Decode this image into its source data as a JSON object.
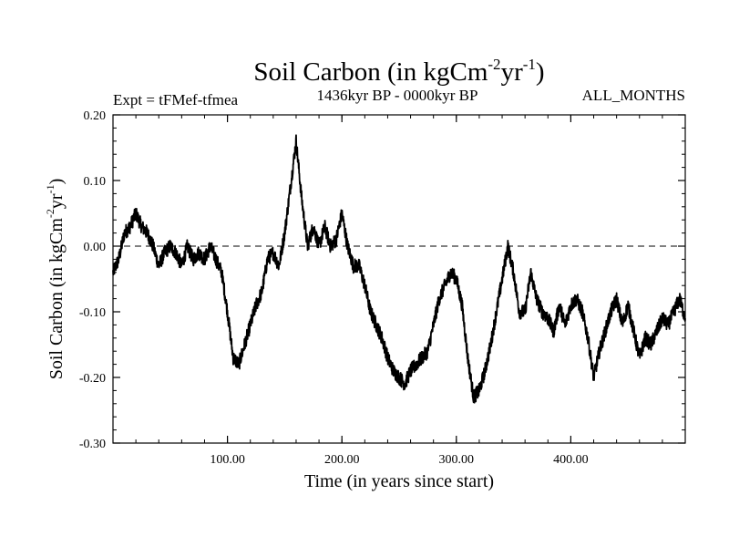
{
  "colors": {
    "line": "#000000",
    "zero_line": "#000000",
    "background": "#ffffff"
  },
  "header": {
    "title_main": "Soil Carbon (in kgCm",
    "title_sup1": "-2",
    "title_mid": "yr",
    "title_sup2": "-1",
    "title_close": ")",
    "left_label": "Expt = tFMef-tfmea",
    "center_label": "1436kyr BP - 0000kyr BP",
    "right_label": "ALL_MONTHS"
  },
  "chart_data": {
    "type": "line",
    "title": "Soil Carbon (in kgCm-2yr-1)",
    "xlabel": "Time (in years since start)",
    "ylabel_main": "Soil Carbon (in kgCm",
    "ylabel_sup1": "-2",
    "ylabel_mid": "yr",
    "ylabel_sup2": "-1",
    "ylabel_close": ")",
    "xlim": [
      0,
      500
    ],
    "ylim": [
      -0.3,
      0.2
    ],
    "x_ticks": [
      100,
      200,
      300,
      400
    ],
    "x_tick_labels": [
      "100.00",
      "200.00",
      "300.00",
      "400.00"
    ],
    "y_ticks": [
      0.2,
      0.1,
      0.0,
      -0.1,
      -0.2,
      -0.3
    ],
    "y_tick_labels": [
      "0.20",
      "0.10",
      "0.00",
      "-0.10",
      "-0.20",
      "-0.30"
    ],
    "reference_line": {
      "y": 0.0,
      "style": "dashed"
    },
    "series": [
      {
        "name": "Soil Carbon",
        "points": [
          [
            0,
            -0.04
          ],
          [
            5,
            -0.02
          ],
          [
            10,
            0.02
          ],
          [
            15,
            0.03
          ],
          [
            20,
            0.05
          ],
          [
            25,
            0.03
          ],
          [
            30,
            0.02
          ],
          [
            35,
            0.0
          ],
          [
            40,
            -0.03
          ],
          [
            45,
            -0.01
          ],
          [
            50,
            0.0
          ],
          [
            55,
            -0.01
          ],
          [
            60,
            -0.03
          ],
          [
            65,
            0.0
          ],
          [
            70,
            -0.02
          ],
          [
            75,
            -0.01
          ],
          [
            80,
            -0.02
          ],
          [
            85,
            0.0
          ],
          [
            90,
            -0.02
          ],
          [
            95,
            -0.04
          ],
          [
            100,
            -0.1
          ],
          [
            105,
            -0.17
          ],
          [
            110,
            -0.18
          ],
          [
            115,
            -0.15
          ],
          [
            120,
            -0.12
          ],
          [
            125,
            -0.09
          ],
          [
            130,
            -0.07
          ],
          [
            135,
            -0.02
          ],
          [
            140,
            -0.01
          ],
          [
            145,
            -0.03
          ],
          [
            150,
            0.02
          ],
          [
            155,
            0.09
          ],
          [
            160,
            0.16
          ],
          [
            165,
            0.07
          ],
          [
            170,
            0.0
          ],
          [
            175,
            0.03
          ],
          [
            180,
            0.0
          ],
          [
            185,
            0.03
          ],
          [
            190,
            0.0
          ],
          [
            195,
            0.01
          ],
          [
            200,
            0.05
          ],
          [
            205,
            0.0
          ],
          [
            210,
            -0.03
          ],
          [
            215,
            -0.03
          ],
          [
            220,
            -0.06
          ],
          [
            225,
            -0.1
          ],
          [
            230,
            -0.12
          ],
          [
            235,
            -0.14
          ],
          [
            240,
            -0.17
          ],
          [
            245,
            -0.19
          ],
          [
            250,
            -0.2
          ],
          [
            255,
            -0.21
          ],
          [
            260,
            -0.19
          ],
          [
            265,
            -0.18
          ],
          [
            270,
            -0.17
          ],
          [
            275,
            -0.16
          ],
          [
            280,
            -0.12
          ],
          [
            285,
            -0.08
          ],
          [
            290,
            -0.06
          ],
          [
            295,
            -0.04
          ],
          [
            300,
            -0.05
          ],
          [
            305,
            -0.09
          ],
          [
            310,
            -0.17
          ],
          [
            315,
            -0.23
          ],
          [
            320,
            -0.22
          ],
          [
            325,
            -0.19
          ],
          [
            330,
            -0.15
          ],
          [
            335,
            -0.1
          ],
          [
            340,
            -0.05
          ],
          [
            345,
            0.0
          ],
          [
            350,
            -0.04
          ],
          [
            355,
            -0.1
          ],
          [
            360,
            -0.1
          ],
          [
            365,
            -0.04
          ],
          [
            370,
            -0.08
          ],
          [
            375,
            -0.1
          ],
          [
            380,
            -0.11
          ],
          [
            385,
            -0.13
          ],
          [
            390,
            -0.09
          ],
          [
            395,
            -0.12
          ],
          [
            400,
            -0.09
          ],
          [
            405,
            -0.08
          ],
          [
            410,
            -0.1
          ],
          [
            415,
            -0.14
          ],
          [
            420,
            -0.2
          ],
          [
            425,
            -0.16
          ],
          [
            430,
            -0.13
          ],
          [
            435,
            -0.1
          ],
          [
            440,
            -0.08
          ],
          [
            445,
            -0.12
          ],
          [
            450,
            -0.09
          ],
          [
            455,
            -0.13
          ],
          [
            460,
            -0.17
          ],
          [
            465,
            -0.14
          ],
          [
            470,
            -0.15
          ],
          [
            475,
            -0.13
          ],
          [
            480,
            -0.11
          ],
          [
            485,
            -0.12
          ],
          [
            490,
            -0.1
          ],
          [
            495,
            -0.08
          ],
          [
            500,
            -0.11
          ]
        ]
      }
    ],
    "grid": false
  }
}
